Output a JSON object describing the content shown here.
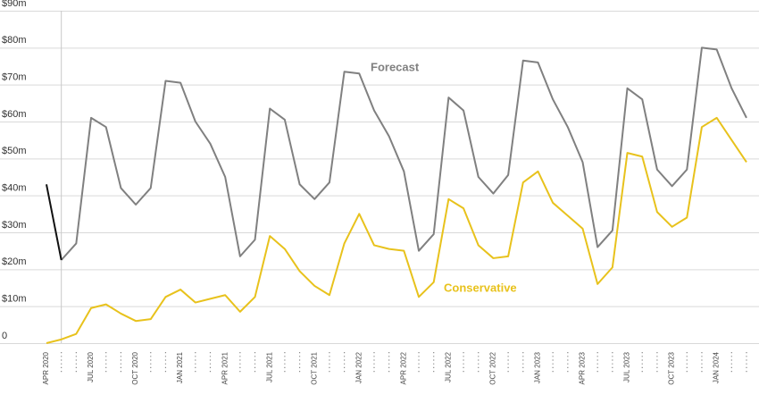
{
  "chart_data": {
    "type": "line",
    "categories": [
      "APR 2020",
      null,
      null,
      "JUL 2020",
      null,
      null,
      "OCT 2020",
      null,
      null,
      "JAN 2021",
      null,
      null,
      "APR 2021",
      null,
      null,
      "JUL 2021",
      null,
      null,
      "OCT 2021",
      null,
      null,
      "JAN 2022",
      null,
      null,
      "APR 2022",
      null,
      null,
      "JUL 2022",
      null,
      null,
      "OCT 2022",
      null,
      null,
      "JAN 2023",
      null,
      null,
      "APR 2023",
      null,
      null,
      "JUL 2023",
      null,
      null,
      "OCT 2023",
      null,
      null,
      "JAN 2024",
      null,
      null
    ],
    "series": [
      {
        "name": "Forecast",
        "color": "#808080",
        "values": [
          null,
          22.5,
          27,
          61,
          58.5,
          42,
          37.5,
          42,
          71,
          70.5,
          60,
          54,
          45,
          23.5,
          28,
          63.5,
          60.5,
          43,
          39,
          43.5,
          73.5,
          73,
          63,
          56,
          46.5,
          25,
          29.5,
          66.5,
          63,
          45,
          40.5,
          45.5,
          76.5,
          76,
          66,
          58.5,
          49,
          26,
          30.5,
          69,
          66,
          47,
          42.5,
          47,
          80,
          79.5,
          69,
          61
        ]
      },
      {
        "name": "Conservative",
        "color": "#e8c21c",
        "values": [
          0,
          1,
          2.5,
          9.5,
          10.5,
          8,
          6,
          6.5,
          12.5,
          14.5,
          11,
          12,
          13,
          8.5,
          12.5,
          29,
          25.5,
          19.5,
          15.5,
          13,
          27,
          35,
          26.5,
          25.5,
          25,
          12.5,
          16.5,
          39,
          36.5,
          26.5,
          23,
          23.5,
          43.5,
          46.5,
          38,
          34.5,
          31,
          16,
          20.5,
          51.5,
          50.5,
          35.5,
          31.5,
          34,
          58.5,
          61,
          55,
          49
        ]
      },
      {
        "color": "#111111",
        "values": [
          43,
          22.5,
          null,
          null,
          null,
          null,
          null,
          null,
          null,
          null,
          null,
          null,
          null,
          null,
          null,
          null,
          null,
          null,
          null,
          null,
          null,
          null,
          null,
          null,
          null,
          null,
          null,
          null,
          null,
          null,
          null,
          null,
          null,
          null,
          null,
          null,
          null,
          null,
          null,
          null,
          null,
          null,
          null,
          null,
          null,
          null,
          null,
          null
        ]
      }
    ],
    "ylim": [
      0,
      90
    ],
    "yticks": [
      0,
      {
        "value": 10,
        "label": "$10m"
      },
      {
        "value": 20,
        "label": "$20m"
      },
      {
        "value": 30,
        "label": "$30m"
      },
      {
        "value": 40,
        "label": "$40m"
      },
      {
        "value": 50,
        "label": "$50m"
      },
      {
        "value": 60,
        "label": "$60m"
      },
      {
        "value": 70,
        "label": "$70m"
      },
      {
        "value": 80,
        "label": "$80m"
      },
      {
        "value": 90,
        "label": "$90m"
      }
    ],
    "grid": true
  }
}
